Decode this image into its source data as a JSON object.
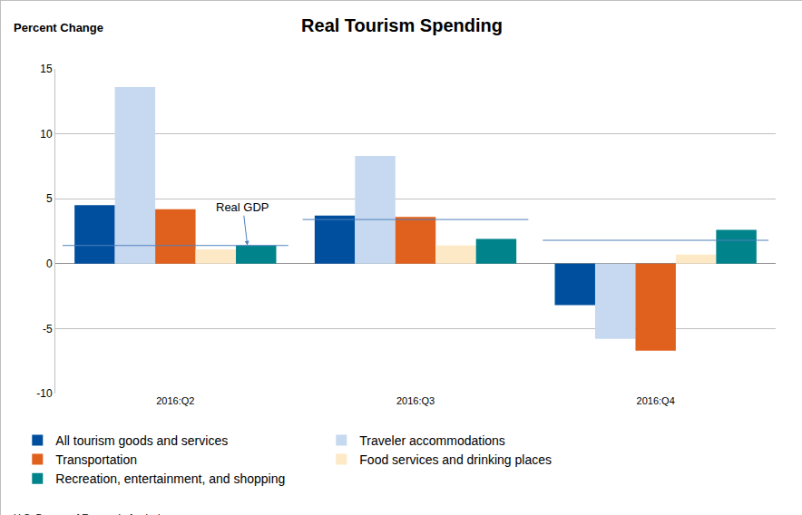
{
  "chart_data": {
    "type": "bar",
    "title": "Real Tourism Spending",
    "y_label": "Percent Change",
    "source": "U.S. Bureau of Economic Analysis",
    "categories": [
      "2016:Q2",
      "2016:Q3",
      "2016:Q4"
    ],
    "series": [
      {
        "name": "All tourism goods and services",
        "color": "#004f9f",
        "values": [
          4.5,
          3.7,
          -3.2
        ]
      },
      {
        "name": "Traveler accommodations",
        "color": "#c6d9f1",
        "values": [
          13.6,
          8.3,
          -5.8
        ]
      },
      {
        "name": "Transportation",
        "color": "#e0611e",
        "values": [
          4.2,
          3.6,
          -6.7
        ]
      },
      {
        "name": "Food services and drinking places",
        "color": "#fde9c5",
        "values": [
          1.1,
          1.4,
          0.7
        ]
      },
      {
        "name": "Recreation, entertainment, and shopping",
        "color": "#00838a",
        "values": [
          1.4,
          1.9,
          2.6
        ]
      },
      {
        "name": "Real GDP",
        "type": "line",
        "color": "#4f81bd",
        "values": [
          1.4,
          3.4,
          1.8
        ]
      }
    ],
    "ylim": [
      -10,
      15
    ],
    "yticks": [
      -10,
      -5,
      0,
      5,
      10,
      15
    ],
    "grid": true,
    "legend": "bottom"
  }
}
